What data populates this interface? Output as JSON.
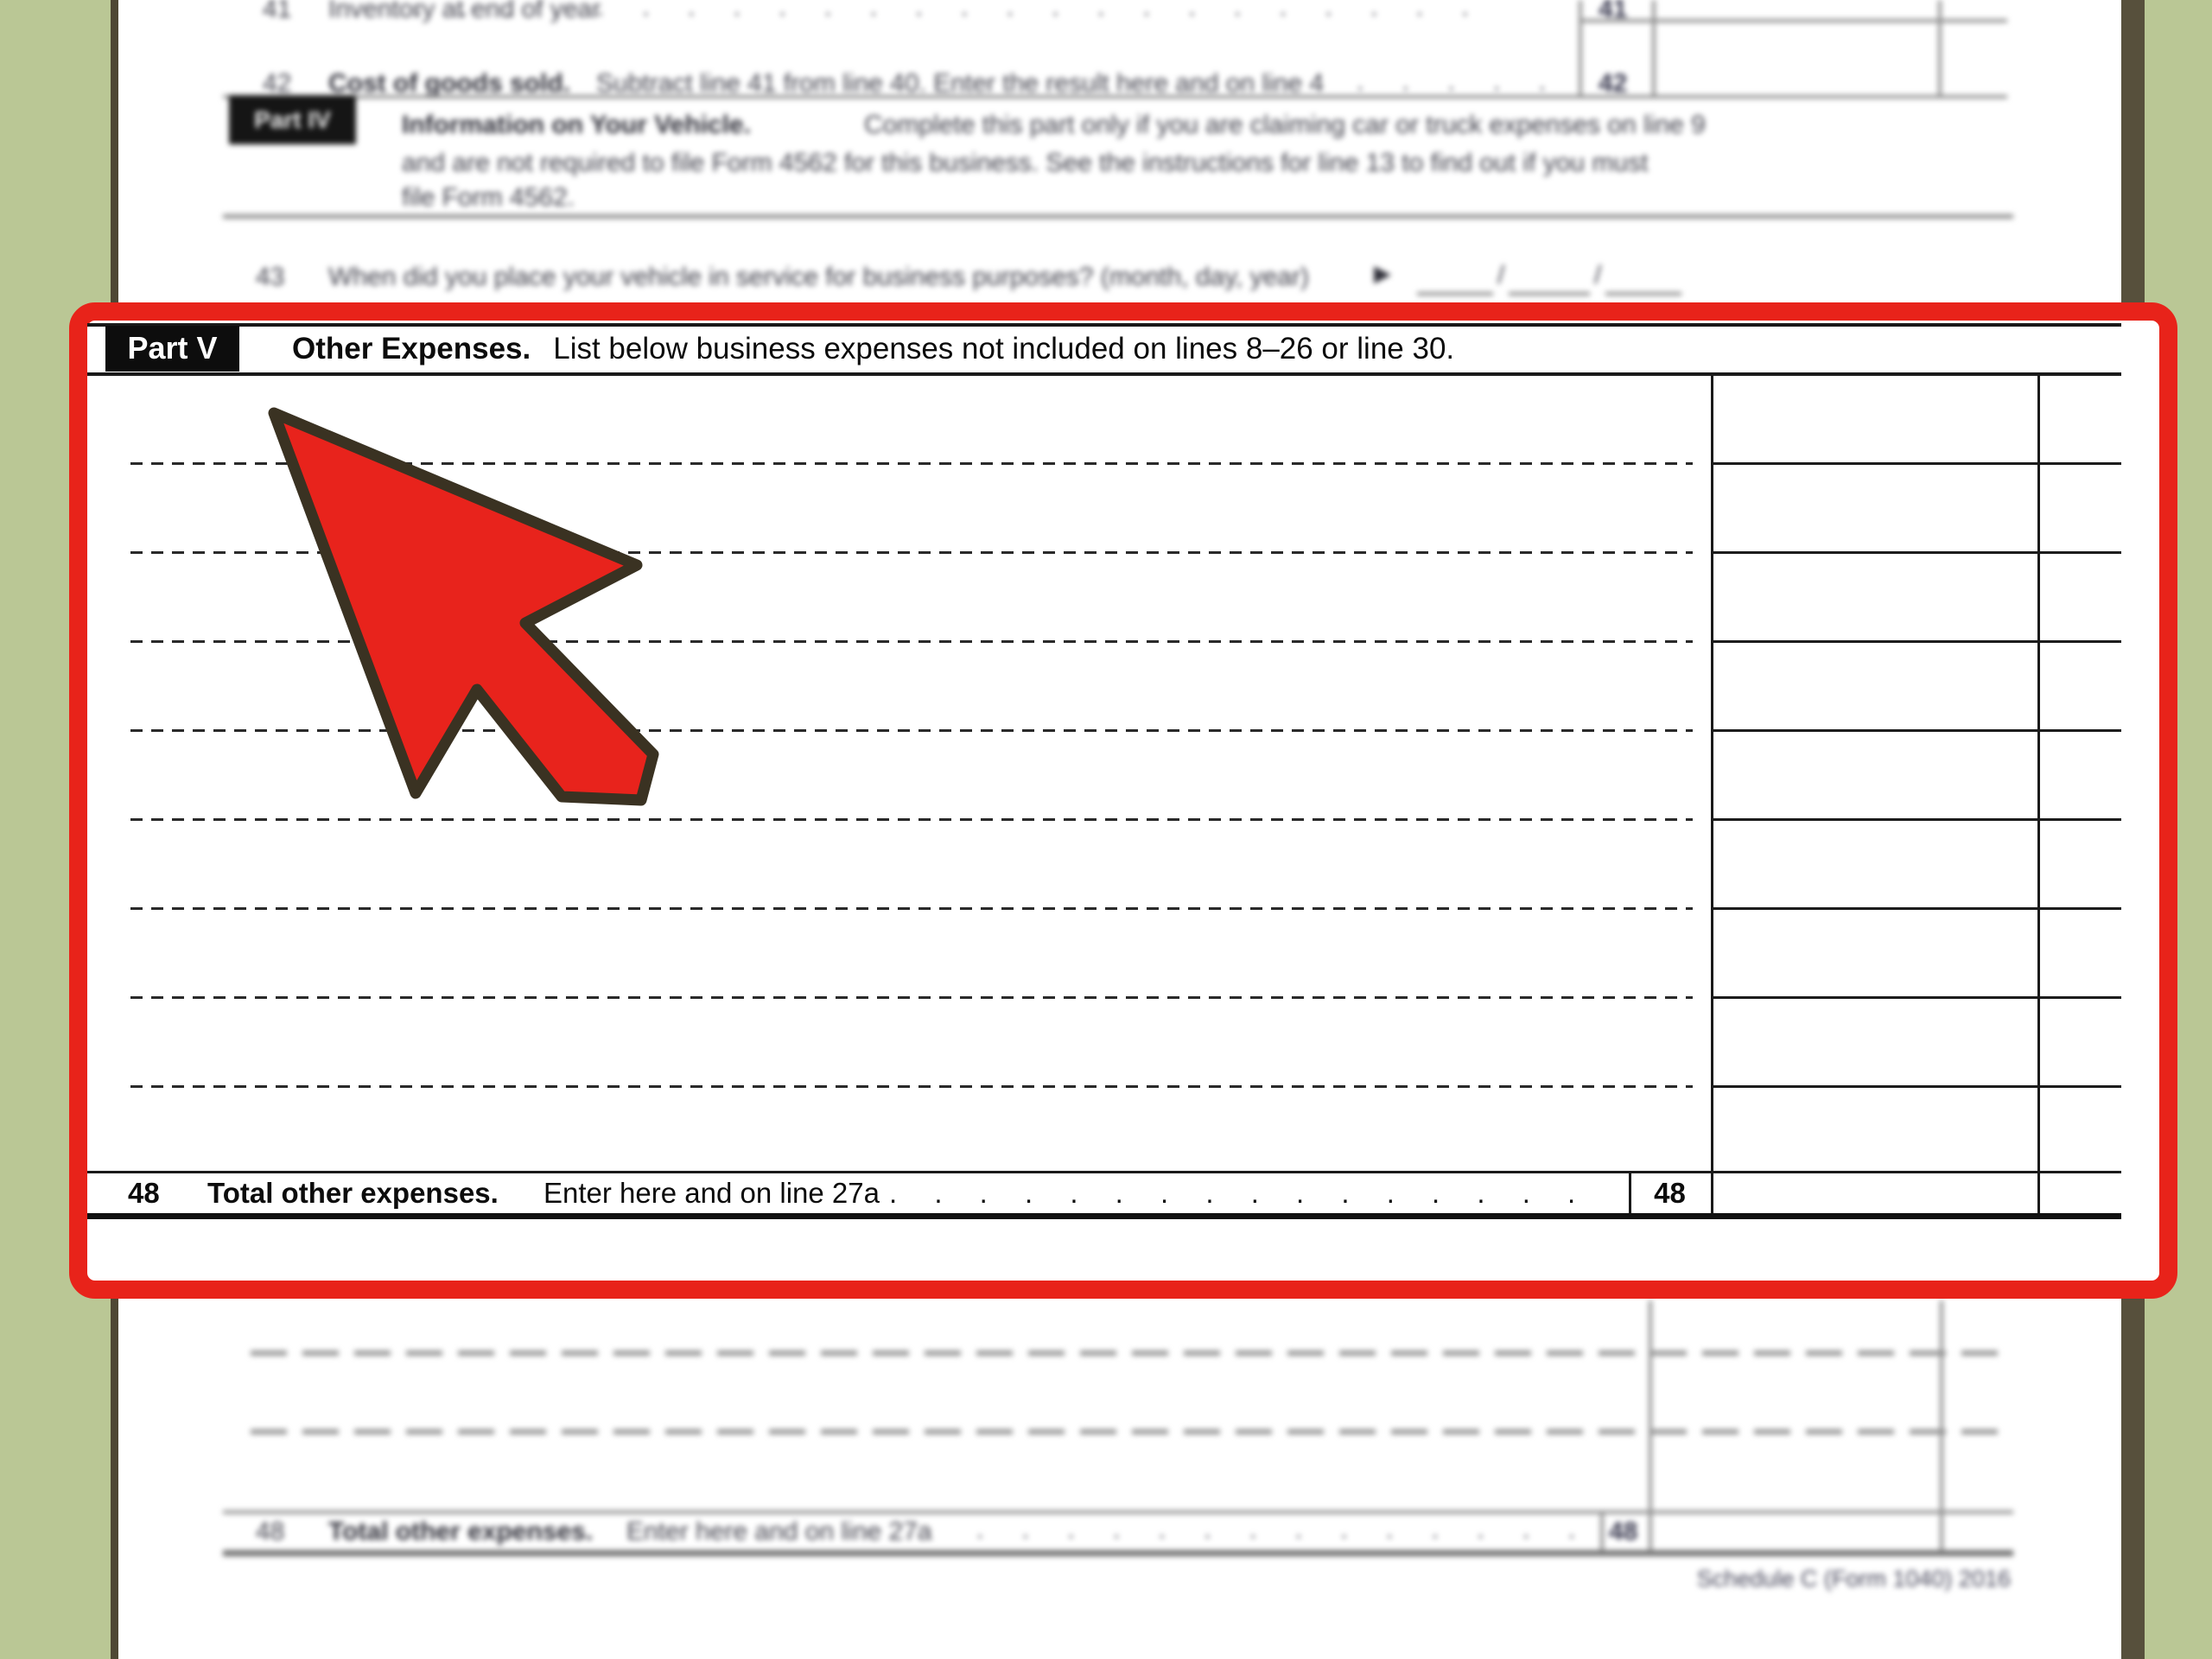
{
  "colors": {
    "background_green": "#bac795",
    "paper": "#ffffff",
    "page_edge_left": "#4e4734",
    "page_edge_right": "#57503c",
    "highlight_red": "#e8231a",
    "arrow_fill": "#e8231c",
    "arrow_outline": "#3a3222",
    "form_line": "#1a1a1a",
    "part_label_bg": "#0d0d0d"
  },
  "form_top": {
    "line41": {
      "number": "41",
      "label": "Inventory at end of year",
      "dots": ". . . . . . . . . . . . . . . . . . . . . . . .",
      "box_number": "41"
    },
    "line42": {
      "number": "42",
      "label_bold": "Cost of goods sold.",
      "label_rest": "Subtract line 41 from line 40. Enter the result here and on line 4",
      "dots": ". . . . . .",
      "box_number": "42"
    },
    "part4": {
      "label": "Part IV",
      "title": "Information on Your Vehicle.",
      "body_line1": "Complete this part only if you are claiming car or truck expenses on line 9",
      "body_line2": "and are not required to file Form 4562 for this business. See the instructions for line 13 to find out if you must",
      "body_line3": "file Form 4562."
    },
    "line43": {
      "number": "43",
      "label": "When did you place your vehicle in service for business purposes? (month, day, year)",
      "pointer": "▶",
      "slash1": "/",
      "slash2": "/"
    }
  },
  "part5": {
    "label": "Part V",
    "title": "Other Expenses.",
    "subtitle": "List below business expenses not included on lines 8–26 or line 30.",
    "expense_line_count": 8,
    "total_row": {
      "number": "48",
      "label_bold": "Total other expenses.",
      "label_rest": "Enter here and on line 27a",
      "dots": ". . . . . . . . . . . . . . . .",
      "box_number": "48"
    }
  },
  "form_bottom": {
    "total_row": {
      "number": "48",
      "label_bold": "Total other expenses.",
      "label_rest": "Enter here and on line 27a",
      "dots": ". . . . . . . . . . . . . . .",
      "box_number": "48"
    },
    "footer": "Schedule C (Form 1040) 2016"
  }
}
